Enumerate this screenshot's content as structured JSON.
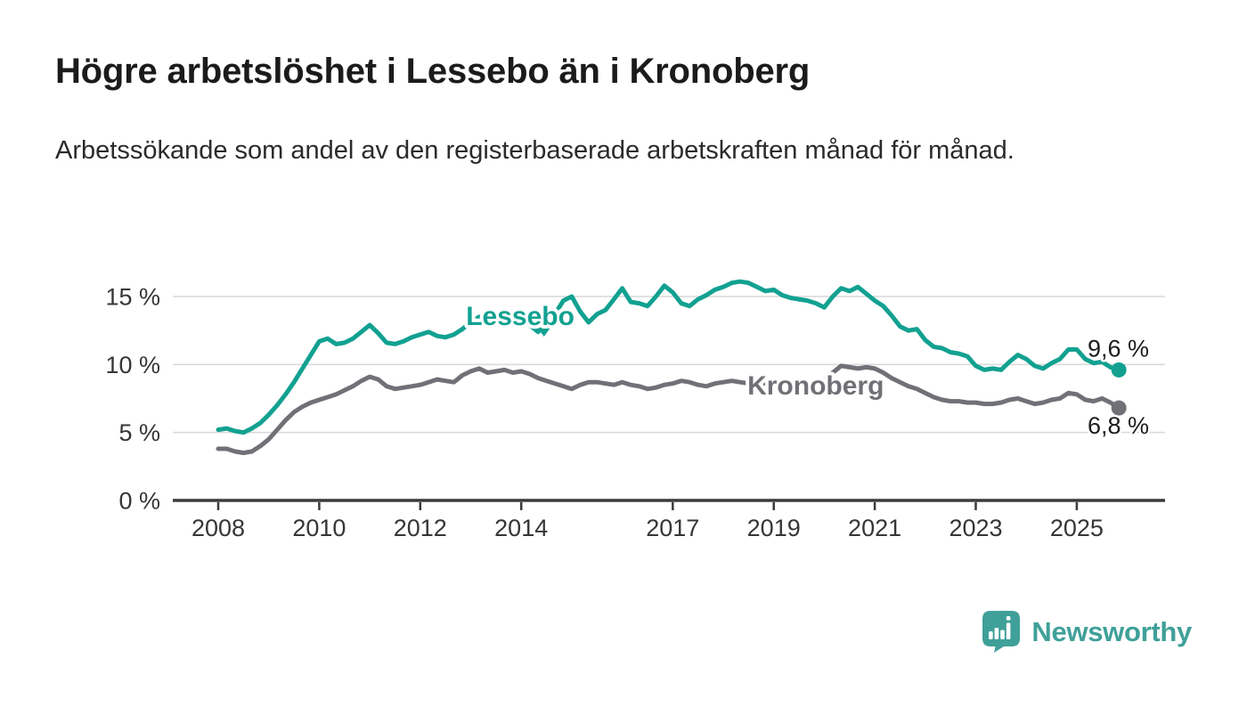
{
  "header": {
    "title": "Högre arbetslöshet i Lessebo än i Kronoberg",
    "subtitle": "Arbetssökande som andel av den registerbaserade arbetskraften månad för månad."
  },
  "footer": {
    "brand": "Newsworthy",
    "brand_color": "#3FA099"
  },
  "chart_data": {
    "type": "line",
    "title": "Högre arbetslöshet i Lessebo än i Kronoberg",
    "subtitle": "Arbetssökande som andel av den registerbaserade arbetskraften månad för månad.",
    "xlabel": "",
    "ylabel": "",
    "unit": "%",
    "grid": "horizontal",
    "legend_position": "inline-labels",
    "x_start_year": 2008.0,
    "x_step_years": 0.1666667,
    "x_end_year": 2025.83,
    "x_ticks": [
      2008,
      2010,
      2012,
      2014,
      2017,
      2019,
      2021,
      2023,
      2025
    ],
    "y_ticks": [
      0,
      5,
      10,
      15
    ],
    "y_tick_labels": [
      "0 %",
      "5 %",
      "10 %",
      "15 %"
    ],
    "ylim": [
      0,
      16.6
    ],
    "axis_color": "#3b3b3b",
    "grid_color": "#d9d9d9",
    "series": [
      {
        "name": "Lessebo",
        "color": "#12A191",
        "end_label": "9,6 %",
        "end_value": 9.6,
        "end_label_side": "above",
        "label_pos": {
          "year": 2013.98,
          "value": 13.56
        },
        "values": [
          5.2,
          5.3,
          5.1,
          5.0,
          5.3,
          5.7,
          6.3,
          7.0,
          7.8,
          8.7,
          9.7,
          10.7,
          11.7,
          11.9,
          11.5,
          11.6,
          11.9,
          12.4,
          12.9,
          12.3,
          11.6,
          11.5,
          11.7,
          12.0,
          12.2,
          12.4,
          12.1,
          12.0,
          12.2,
          12.6,
          13.1,
          13.5,
          13.3,
          13.5,
          13.8,
          13.6,
          13.4,
          12.9,
          12.4,
          13.1,
          13.7,
          14.7,
          15.0,
          13.9,
          13.1,
          13.7,
          14.0,
          14.8,
          15.6,
          14.6,
          14.5,
          14.3,
          15.0,
          15.8,
          15.3,
          14.5,
          14.3,
          14.8,
          15.1,
          15.5,
          15.7,
          16.0,
          16.1,
          16.0,
          15.7,
          15.4,
          15.5,
          15.1,
          14.9,
          14.8,
          14.7,
          14.5,
          14.2,
          15.0,
          15.6,
          15.4,
          15.7,
          15.2,
          14.7,
          14.3,
          13.6,
          12.8,
          12.5,
          12.6,
          11.8,
          11.3,
          11.2,
          10.9,
          10.8,
          10.6,
          9.9,
          9.6,
          9.7,
          9.6,
          10.2,
          10.7,
          10.4,
          9.9,
          9.7,
          10.1,
          10.4,
          11.1,
          11.1,
          10.4,
          10.1,
          10.2,
          9.8,
          9.6
        ]
      },
      {
        "name": "Kronoberg",
        "color": "#727076",
        "end_label": "6,8 %",
        "end_value": 6.8,
        "end_label_side": "below",
        "label_pos": {
          "year": 2019.83,
          "value": 8.45
        },
        "values": [
          3.8,
          3.8,
          3.6,
          3.5,
          3.6,
          4.0,
          4.5,
          5.2,
          5.9,
          6.5,
          6.9,
          7.2,
          7.4,
          7.6,
          7.8,
          8.1,
          8.4,
          8.8,
          9.1,
          8.9,
          8.4,
          8.2,
          8.3,
          8.4,
          8.5,
          8.7,
          8.9,
          8.8,
          8.7,
          9.2,
          9.5,
          9.7,
          9.4,
          9.5,
          9.6,
          9.4,
          9.5,
          9.3,
          9.0,
          8.8,
          8.6,
          8.4,
          8.2,
          8.5,
          8.7,
          8.7,
          8.6,
          8.5,
          8.7,
          8.5,
          8.4,
          8.2,
          8.3,
          8.5,
          8.6,
          8.8,
          8.7,
          8.5,
          8.4,
          8.6,
          8.7,
          8.8,
          8.7,
          8.6,
          8.5,
          8.6,
          8.6,
          8.5,
          8.4,
          8.4,
          8.5,
          8.7,
          8.8,
          9.4,
          9.9,
          9.8,
          9.7,
          9.8,
          9.7,
          9.4,
          9.0,
          8.7,
          8.4,
          8.2,
          7.9,
          7.6,
          7.4,
          7.3,
          7.3,
          7.2,
          7.2,
          7.1,
          7.1,
          7.2,
          7.4,
          7.5,
          7.3,
          7.1,
          7.2,
          7.4,
          7.5,
          7.9,
          7.8,
          7.4,
          7.3,
          7.5,
          7.2,
          6.8
        ]
      }
    ],
    "annotations": [
      {
        "name": "lessebo-dip-marker",
        "shape": "triangle-down",
        "year": 2014.45,
        "value": 12.35,
        "color": "#12A191"
      }
    ]
  }
}
